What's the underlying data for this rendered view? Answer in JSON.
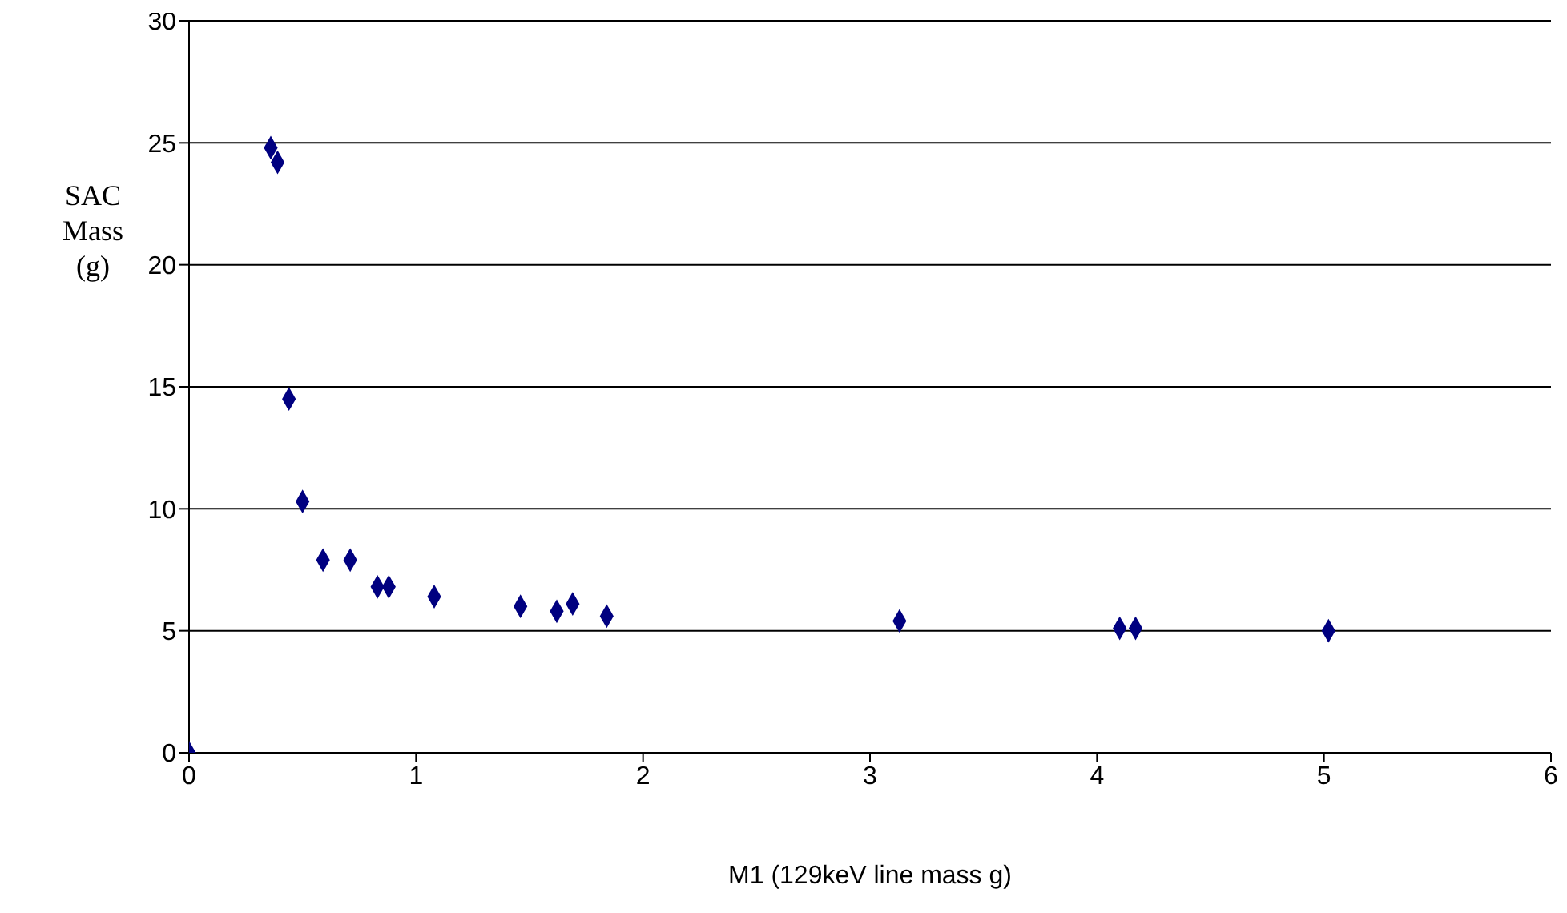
{
  "chart_data": {
    "type": "scatter",
    "xlabel": "M1 (129keV line mass g)",
    "ylabel": "SAC Mass (g)",
    "x": [
      0,
      0.36,
      0.39,
      0.44,
      0.5,
      0.59,
      0.71,
      0.83,
      0.88,
      1.08,
      1.46,
      1.62,
      1.69,
      1.84,
      3.13,
      4.1,
      4.17,
      5.02
    ],
    "series": [
      {
        "color": "#000080",
        "values": [
          0,
          24.8,
          24.2,
          14.5,
          10.3,
          7.9,
          7.9,
          6.8,
          6.8,
          6.4,
          6.0,
          5.8,
          6.1,
          5.6,
          5.4,
          5.1,
          5.1,
          5.0
        ]
      }
    ],
    "xlim": [
      0,
      6
    ],
    "xticks": [
      0,
      1,
      2,
      3,
      4,
      5,
      6
    ],
    "ylim": [
      0,
      30
    ],
    "yticks": [
      0,
      5,
      10,
      15,
      20,
      25,
      30
    ],
    "grid": "y",
    "legend": false,
    "marker": "diamond"
  }
}
